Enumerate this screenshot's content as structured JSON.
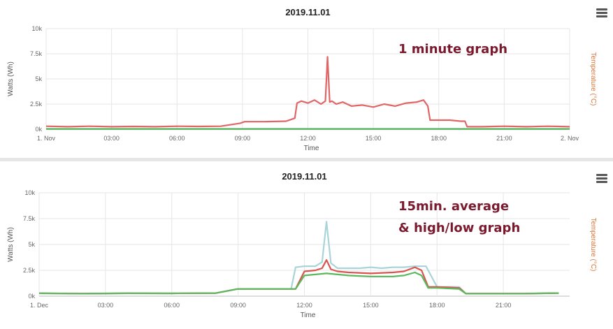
{
  "charts": [
    {
      "chart_data": {
        "type": "line",
        "title": "2019.11.01",
        "xlabel": "Time",
        "ylabel": "Watts (Wh)",
        "y2label": "Temperature (°C)",
        "annotation": "1 minute graph",
        "ylim": [
          0,
          10000
        ],
        "xlim": [
          0,
          24
        ],
        "yticks": [
          "0k",
          "2.5k",
          "5k",
          "7.5k",
          "10k"
        ],
        "xticks": [
          "1. Nov",
          "03:00",
          "06:00",
          "09:00",
          "12:00",
          "15:00",
          "18:00",
          "21:00",
          "2. Nov"
        ],
        "grid": true,
        "series": [
          {
            "color": "#e06666",
            "x": [
              0,
              1,
              2,
              3,
              4,
              5,
              6,
              7,
              8,
              8.9,
              9.1,
              10,
              11,
              11.4,
              11.5,
              11.7,
              12,
              12.3,
              12.6,
              12.8,
              12.9,
              13.0,
              13.1,
              13.3,
              13.6,
              14,
              14.5,
              15,
              15.5,
              16,
              16.5,
              17,
              17.3,
              17.5,
              17.6,
              18,
              18.5,
              19,
              19.2,
              19.3,
              20,
              21,
              22,
              23,
              24
            ],
            "y": [
              300,
              250,
              300,
              250,
              280,
              250,
              300,
              280,
              300,
              600,
              750,
              750,
              800,
              1100,
              2600,
              2800,
              2600,
              2900,
              2500,
              2800,
              7200,
              2700,
              2800,
              2500,
              2700,
              2300,
              2400,
              2200,
              2500,
              2300,
              2600,
              2700,
              2900,
              2300,
              900,
              900,
              900,
              800,
              800,
              250,
              250,
              300,
              250,
              300,
              250
            ]
          },
          {
            "color": "#4caf50",
            "x": [
              0,
              24
            ],
            "y": [
              30,
              30
            ]
          }
        ]
      },
      "menu_icon": "hamburger-menu-icon"
    },
    {
      "chart_data": {
        "type": "line",
        "title": "2019.11.01",
        "xlabel": "Time",
        "ylabel": "Watts (Wh)",
        "y2label": "Temperature (°C)",
        "annotation_lines": [
          "15min. average",
          "& high/low graph"
        ],
        "ylim": [
          0,
          10000
        ],
        "xlim": [
          0,
          24
        ],
        "yticks": [
          "0k",
          "2.5k",
          "5k",
          "7.5k",
          "10k"
        ],
        "xticks": [
          "1. Dec",
          "03:00",
          "06:00",
          "09:00",
          "12:00",
          "15:00",
          "18:00",
          "21:00"
        ],
        "grid": true,
        "series": [
          {
            "color": "#a9d4d9",
            "x": [
              0,
              2,
              4,
              6,
              8,
              9,
              10,
              11,
              11.4,
              11.6,
              12,
              12.5,
              12.8,
              13.0,
              13.2,
              13.5,
              14,
              14.5,
              15,
              15.5,
              16,
              16.5,
              17,
              17.3,
              17.5,
              18,
              18.5,
              19,
              19.3,
              20,
              22,
              23.5
            ],
            "y": [
              280,
              250,
              280,
              270,
              300,
              700,
              700,
              700,
              700,
              2800,
              2900,
              2900,
              3300,
              7200,
              3200,
              2700,
              2700,
              2700,
              2800,
              2700,
              2800,
              2800,
              2900,
              2900,
              2900,
              900,
              900,
              900,
              250,
              250,
              250,
              300
            ]
          },
          {
            "color": "#d9534f",
            "x": [
              0,
              2,
              4,
              6,
              8,
              9,
              10,
              11,
              11.6,
              12,
              12.5,
              12.8,
              13.0,
              13.2,
              13.5,
              14,
              15,
              16,
              16.5,
              17,
              17.3,
              17.6,
              18,
              18.5,
              19,
              19.3,
              20,
              22,
              23.5
            ],
            "y": [
              280,
              250,
              280,
              270,
              300,
              700,
              700,
              700,
              700,
              2400,
              2500,
              2700,
              3500,
              2600,
              2400,
              2300,
              2200,
              2300,
              2400,
              2800,
              2500,
              900,
              900,
              850,
              800,
              250,
              250,
              250,
              300
            ]
          },
          {
            "color": "#5cb85c",
            "x": [
              0,
              2,
              4,
              6,
              8,
              9,
              10,
              11,
              11.6,
              12,
              12.5,
              13,
              13.5,
              14,
              15,
              16,
              16.5,
              17,
              17.3,
              17.6,
              18,
              19,
              19.3,
              20,
              22,
              23.5
            ],
            "y": [
              280,
              250,
              280,
              270,
              300,
              700,
              700,
              700,
              700,
              2000,
              2100,
              2200,
              2100,
              2000,
              1900,
              1900,
              2000,
              2300,
              2000,
              800,
              800,
              700,
              250,
              250,
              250,
              300
            ]
          }
        ]
      },
      "menu_icon": "hamburger-menu-icon"
    }
  ]
}
